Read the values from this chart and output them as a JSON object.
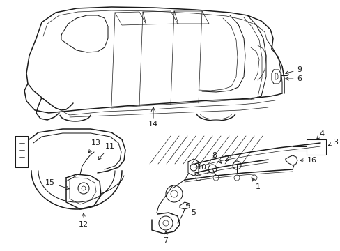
{
  "bg_color": "#ffffff",
  "line_color": "#1a1a1a",
  "label_color": "#1a1a1a",
  "fig_width": 4.89,
  "fig_height": 3.6,
  "dpi": 100,
  "label_fontsize": 8.0,
  "lw_thick": 1.1,
  "lw_med": 0.75,
  "lw_thin": 0.5
}
